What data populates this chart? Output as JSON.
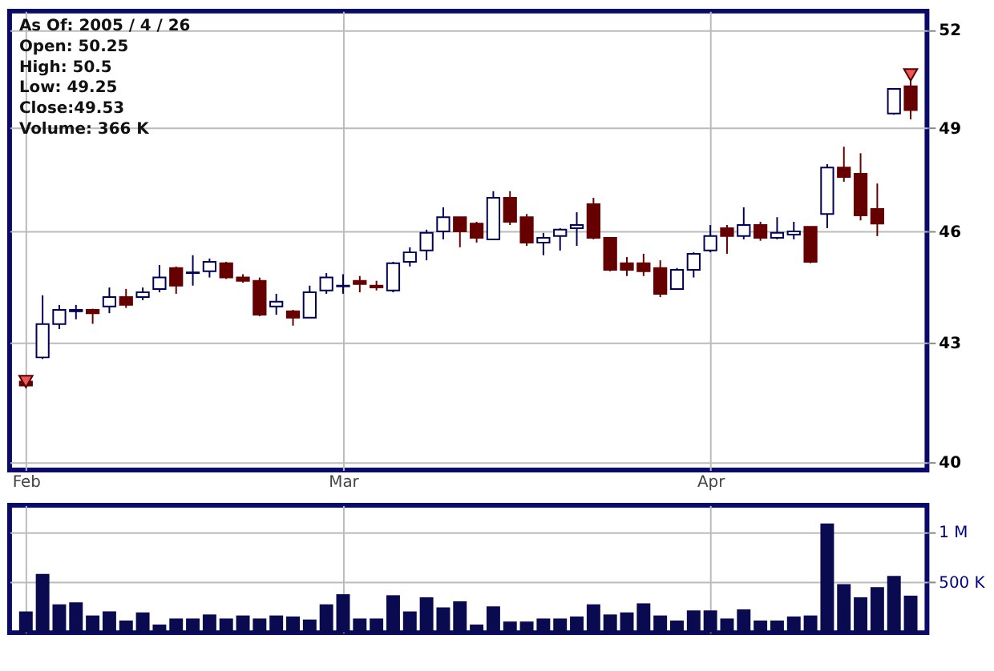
{
  "chart_data": [
    {
      "type": "candlestick",
      "log": true,
      "grid": true,
      "marker": "triangle",
      "annotations": [
        "As Of: 2005 / 4 / 26",
        "Open: 50.25",
        "High: 50.5",
        "Low: 49.25",
        "Close:49.53",
        "Volume: 366 K"
      ],
      "categories": [
        "Feb",
        null,
        null,
        null,
        null,
        null,
        null,
        null,
        null,
        null,
        null,
        null,
        null,
        null,
        null,
        null,
        null,
        null,
        null,
        "Mar",
        null,
        null,
        null,
        null,
        null,
        null,
        null,
        null,
        null,
        null,
        null,
        null,
        null,
        null,
        null,
        null,
        null,
        null,
        null,
        null,
        null,
        "Apr",
        null,
        null,
        null,
        null,
        null,
        null,
        null,
        null,
        null,
        null,
        null,
        null
      ],
      "ohlc": [
        [
          42.0,
          42.1,
          41.85,
          41.9
        ],
        [
          42.62,
          44.26,
          42.58,
          43.49
        ],
        [
          43.49,
          44.0,
          43.36,
          43.87
        ],
        [
          43.83,
          44.0,
          43.62,
          43.87
        ],
        [
          43.87,
          43.9,
          43.5,
          43.78
        ],
        [
          43.96,
          44.47,
          43.78,
          44.21
        ],
        [
          44.21,
          44.43,
          43.92,
          44.0
        ],
        [
          44.21,
          44.47,
          44.13,
          44.34
        ],
        [
          44.43,
          45.08,
          44.34,
          44.74
        ],
        [
          45.0,
          45.04,
          44.3,
          44.52
        ],
        [
          44.86,
          45.35,
          44.52,
          44.88
        ],
        [
          44.91,
          45.26,
          44.74,
          45.17
        ],
        [
          45.13,
          45.17,
          44.7,
          44.74
        ],
        [
          44.74,
          44.83,
          44.6,
          44.65
        ],
        [
          44.65,
          44.74,
          43.7,
          43.74
        ],
        [
          43.96,
          44.3,
          43.74,
          44.09
        ],
        [
          43.83,
          43.87,
          43.45,
          43.66
        ],
        [
          43.66,
          44.52,
          43.66,
          44.34
        ],
        [
          44.39,
          44.86,
          44.3,
          44.74
        ],
        [
          44.5,
          44.83,
          44.3,
          44.52
        ],
        [
          44.65,
          44.78,
          44.34,
          44.56
        ],
        [
          44.52,
          44.65,
          44.39,
          44.47
        ],
        [
          44.39,
          45.17,
          44.34,
          45.13
        ],
        [
          45.17,
          45.57,
          45.04,
          45.43
        ],
        [
          45.48,
          46.06,
          45.21,
          45.97
        ],
        [
          46.01,
          46.69,
          45.79,
          46.41
        ],
        [
          46.41,
          46.41,
          45.57,
          46.01
        ],
        [
          46.23,
          46.28,
          45.7,
          45.83
        ],
        [
          45.79,
          47.15,
          45.79,
          46.96
        ],
        [
          46.96,
          47.15,
          46.19,
          46.28
        ],
        [
          46.41,
          46.5,
          45.61,
          45.7
        ],
        [
          45.7,
          45.97,
          45.35,
          45.83
        ],
        [
          45.88,
          46.1,
          45.48,
          46.06
        ],
        [
          46.1,
          46.55,
          45.61,
          46.19
        ],
        [
          46.78,
          46.96,
          45.79,
          45.83
        ],
        [
          45.83,
          45.83,
          44.91,
          44.95
        ],
        [
          45.13,
          45.3,
          44.78,
          44.95
        ],
        [
          45.13,
          45.39,
          44.78,
          44.91
        ],
        [
          45.0,
          45.21,
          44.21,
          44.3
        ],
        [
          44.43,
          45.0,
          44.43,
          44.95
        ],
        [
          44.95,
          45.43,
          44.74,
          45.39
        ],
        [
          45.48,
          46.19,
          45.43,
          45.88
        ],
        [
          46.1,
          46.19,
          45.39,
          45.88
        ],
        [
          45.88,
          46.69,
          45.79,
          46.19
        ],
        [
          46.19,
          46.28,
          45.75,
          45.83
        ],
        [
          45.83,
          46.41,
          45.79,
          45.97
        ],
        [
          45.92,
          46.28,
          45.79,
          46.01
        ],
        [
          46.14,
          46.14,
          45.13,
          45.17
        ],
        [
          46.5,
          47.93,
          46.1,
          47.83
        ],
        [
          47.83,
          48.44,
          47.42,
          47.56
        ],
        [
          47.65,
          48.25,
          46.32,
          46.46
        ],
        [
          46.64,
          47.37,
          45.88,
          46.23
        ],
        [
          49.43,
          50.2,
          49.39,
          50.17
        ],
        [
          50.25,
          50.5,
          49.25,
          49.53
        ]
      ],
      "colors": [
        "#660000",
        "#ffffff",
        "#ffffff",
        "#ffffff",
        "#660000",
        "#ffffff",
        "#660000",
        "#ffffff",
        "#ffffff",
        "#660000",
        "#ffffff",
        "#ffffff",
        "#660000",
        "#660000",
        "#660000",
        "#ffffff",
        "#660000",
        "#ffffff",
        "#ffffff",
        "#ffffff",
        "#660000",
        "#660000",
        "#ffffff",
        "#ffffff",
        "#ffffff",
        "#ffffff",
        "#660000",
        "#660000",
        "#ffffff",
        "#660000",
        "#660000",
        "#ffffff",
        "#ffffff",
        "#ffffff",
        "#660000",
        "#660000",
        "#660000",
        "#660000",
        "#660000",
        "#ffffff",
        "#ffffff",
        "#ffffff",
        "#660000",
        "#ffffff",
        "#660000",
        "#ffffff",
        "#ffffff",
        "#660000",
        "#ffffff",
        "#660000",
        "#660000",
        "#660000",
        "#ffffff",
        "#660000"
      ],
      "series": [
        {
          "type": "scatter",
          "color": "#ee5555",
          "values": [
            42.0,
            null,
            null,
            null,
            null,
            null,
            null,
            null,
            null,
            null,
            null,
            null,
            null,
            null,
            null,
            null,
            null,
            null,
            null,
            null,
            null,
            null,
            null,
            null,
            null,
            null,
            null,
            null,
            null,
            null,
            null,
            null,
            null,
            null,
            null,
            null,
            null,
            null,
            null,
            null,
            null,
            null,
            null,
            null,
            null,
            null,
            null,
            null,
            null,
            null,
            null,
            null,
            null,
            50.6
          ]
        }
      ],
      "ylim": [
        39.8,
        52.6
      ],
      "yticks": [
        40,
        43,
        46,
        49,
        52
      ]
    },
    {
      "type": "bar",
      "grid": true,
      "categories": [
        null,
        null,
        null,
        null,
        null,
        null,
        null,
        null,
        null,
        null,
        null,
        null,
        null,
        null,
        null,
        null,
        null,
        null,
        null,
        null,
        null,
        null,
        null,
        null,
        null,
        null,
        null,
        null,
        null,
        null,
        null,
        null,
        null,
        null,
        null,
        null,
        null,
        null,
        null,
        null,
        null,
        null,
        null,
        null,
        null,
        null,
        null,
        null,
        null,
        null,
        null,
        null,
        null,
        null
      ],
      "series": [
        {
          "color": "#0a0a50",
          "values": [
            210000,
            580000,
            280000,
            300000,
            170000,
            210000,
            120000,
            200000,
            80000,
            140000,
            140000,
            180000,
            140000,
            170000,
            140000,
            170000,
            160000,
            130000,
            280000,
            380000,
            140000,
            140000,
            370000,
            210000,
            350000,
            250000,
            310000,
            80000,
            260000,
            110000,
            110000,
            140000,
            140000,
            160000,
            280000,
            180000,
            200000,
            290000,
            170000,
            120000,
            220000,
            220000,
            140000,
            230000,
            120000,
            120000,
            160000,
            170000,
            1080000,
            480000,
            350000,
            450000,
            560000,
            366000
          ]
        }
      ],
      "ylim": [
        0,
        1260000
      ],
      "yticks": [
        {
          "value": 500000,
          "label": "500 K"
        },
        {
          "value": 1000000,
          "label": "1 M"
        }
      ]
    }
  ]
}
